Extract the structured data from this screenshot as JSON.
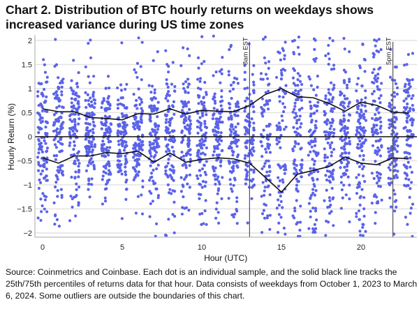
{
  "title": "Chart 2. Distribution of BTC hourly returns on weekdays shows increased variance during US time zones",
  "source": "Source: Coinmetrics and Coinbase. Each dot is an individual sample, and the solid black line tracks the 25th/75th percentiles of returns data for that hour. Data consists of weekdays from October 1, 2023 to March 6, 2024. Some outliers are outside the boundaries of this chart.",
  "chart_data": {
    "type": "scatter",
    "xlabel": "Hour (UTC)",
    "ylabel": "Hourly Return (%)",
    "xlim": [
      -0.5,
      23.5
    ],
    "ylim": [
      -2.1,
      2.1
    ],
    "x_ticks": [
      0,
      5,
      10,
      15,
      20
    ],
    "y_ticks": [
      -2,
      -1.5,
      -1,
      -0.5,
      0,
      0.5,
      1,
      1.5,
      2
    ],
    "grid": "horizontal",
    "hours": [
      0,
      1,
      2,
      3,
      4,
      5,
      6,
      7,
      8,
      9,
      10,
      11,
      12,
      13,
      14,
      15,
      16,
      17,
      18,
      19,
      20,
      21,
      22,
      23
    ],
    "series": [
      {
        "name": "75th percentile",
        "values": [
          0.58,
          0.52,
          0.52,
          0.4,
          0.38,
          0.35,
          0.48,
          0.47,
          0.58,
          0.47,
          0.55,
          0.53,
          0.52,
          0.65,
          0.88,
          1.0,
          0.83,
          0.81,
          0.69,
          0.53,
          0.72,
          0.65,
          0.51,
          0.49
        ]
      },
      {
        "name": "25th percentile",
        "values": [
          -0.44,
          -0.55,
          -0.4,
          -0.4,
          -0.33,
          -0.35,
          -0.3,
          -0.53,
          -0.34,
          -0.53,
          -0.47,
          -0.44,
          -0.46,
          -0.55,
          -0.85,
          -1.15,
          -0.78,
          -0.7,
          -0.62,
          -0.42,
          -0.55,
          -0.58,
          -0.44,
          -0.46
        ]
      }
    ],
    "samples_per_hour": 110,
    "reference_lines": [
      {
        "x": 13,
        "label": "8am EST"
      },
      {
        "x": 22,
        "label": "5pm EST"
      }
    ],
    "colors": {
      "dots": "#5b63e8",
      "lines": "#111111",
      "grid": "#e2e2e2"
    }
  }
}
